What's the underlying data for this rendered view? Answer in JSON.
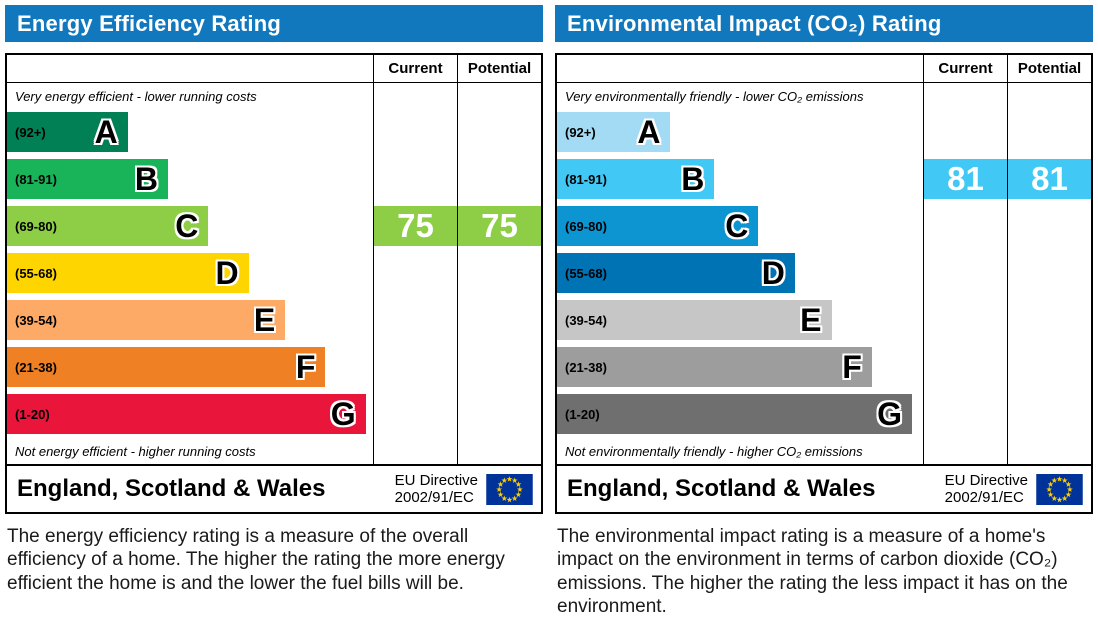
{
  "colors": {
    "header_bg": "#1278be",
    "header_text": "#ffffff",
    "flag_bg": "#003399",
    "flag_star": "#ffcc00"
  },
  "panels": [
    {
      "title": "Energy Efficiency Rating",
      "columns": {
        "current": "Current",
        "potential": "Potential"
      },
      "top_note": "Very energy efficient - lower running costs",
      "bottom_note": "Not energy efficient - higher running costs",
      "bands": [
        {
          "letter": "A",
          "range": "(92+)",
          "color": "#008054",
          "width_pct": 33
        },
        {
          "letter": "B",
          "range": "(81-91)",
          "color": "#19b459",
          "width_pct": 44
        },
        {
          "letter": "C",
          "range": "(69-80)",
          "color": "#8dce46",
          "width_pct": 55
        },
        {
          "letter": "D",
          "range": "(55-68)",
          "color": "#ffd500",
          "width_pct": 66
        },
        {
          "letter": "E",
          "range": "(39-54)",
          "color": "#fcaa65",
          "width_pct": 76
        },
        {
          "letter": "F",
          "range": "(21-38)",
          "color": "#ef8023",
          "width_pct": 87
        },
        {
          "letter": "G",
          "range": "(1-20)",
          "color": "#e9153b",
          "width_pct": 98
        }
      ],
      "ratings": {
        "current": {
          "value": "75",
          "band_index": 2,
          "color": "#8dce46"
        },
        "potential": {
          "value": "75",
          "band_index": 2,
          "color": "#8dce46"
        }
      },
      "footer": {
        "region": "England, Scotland & Wales",
        "directive_line1": "EU Directive",
        "directive_line2": "2002/91/EC"
      },
      "description": "The energy efficiency rating is a measure of the overall efficiency of a home. The higher the rating the more energy efficient the home is and the lower the fuel bills will be."
    },
    {
      "title": "Environmental Impact (CO₂) Rating",
      "columns": {
        "current": "Current",
        "potential": "Potential"
      },
      "top_note": "Very environmentally friendly - lower CO₂ emissions",
      "bottom_note": "Not environmentally friendly - higher CO₂ emissions",
      "bands": [
        {
          "letter": "A",
          "range": "(92+)",
          "color": "#a3dbf4",
          "width_pct": 31
        },
        {
          "letter": "B",
          "range": "(81-91)",
          "color": "#42c8f4",
          "width_pct": 43
        },
        {
          "letter": "C",
          "range": "(69-80)",
          "color": "#0d95d2",
          "width_pct": 55
        },
        {
          "letter": "D",
          "range": "(55-68)",
          "color": "#0073b4",
          "width_pct": 65
        },
        {
          "letter": "E",
          "range": "(39-54)",
          "color": "#c6c6c6",
          "width_pct": 75
        },
        {
          "letter": "F",
          "range": "(21-38)",
          "color": "#9d9d9d",
          "width_pct": 86
        },
        {
          "letter": "G",
          "range": "(1-20)",
          "color": "#6f6f6f",
          "width_pct": 97
        }
      ],
      "ratings": {
        "current": {
          "value": "81",
          "band_index": 1,
          "color": "#42c8f4"
        },
        "potential": {
          "value": "81",
          "band_index": 1,
          "color": "#42c8f4"
        }
      },
      "footer": {
        "region": "England, Scotland & Wales",
        "directive_line1": "EU Directive",
        "directive_line2": "2002/91/EC"
      },
      "description": "The environmental impact rating is a measure of a home's impact on the environment in terms of carbon dioxide (CO₂) emissions. The higher the rating the less impact it has on the environment."
    }
  ],
  "chart_data": [
    {
      "type": "bar",
      "title": "Energy Efficiency Rating",
      "categories": [
        "A (92+)",
        "B (81-91)",
        "C (69-80)",
        "D (55-68)",
        "E (39-54)",
        "F (21-38)",
        "G (1-20)"
      ],
      "series": [
        {
          "name": "Current",
          "value": 75,
          "band": "C"
        },
        {
          "name": "Potential",
          "value": 75,
          "band": "C"
        }
      ],
      "scale": [
        1,
        100
      ],
      "top_annotation": "Very energy efficient - lower running costs",
      "bottom_annotation": "Not energy efficient - higher running costs"
    },
    {
      "type": "bar",
      "title": "Environmental Impact (CO₂) Rating",
      "categories": [
        "A (92+)",
        "B (81-91)",
        "C (69-80)",
        "D (55-68)",
        "E (39-54)",
        "F (21-38)",
        "G (1-20)"
      ],
      "series": [
        {
          "name": "Current",
          "value": 81,
          "band": "B"
        },
        {
          "name": "Potential",
          "value": 81,
          "band": "B"
        }
      ],
      "scale": [
        1,
        100
      ],
      "top_annotation": "Very environmentally friendly - lower CO₂ emissions",
      "bottom_annotation": "Not environmentally friendly - higher CO₂ emissions"
    }
  ]
}
